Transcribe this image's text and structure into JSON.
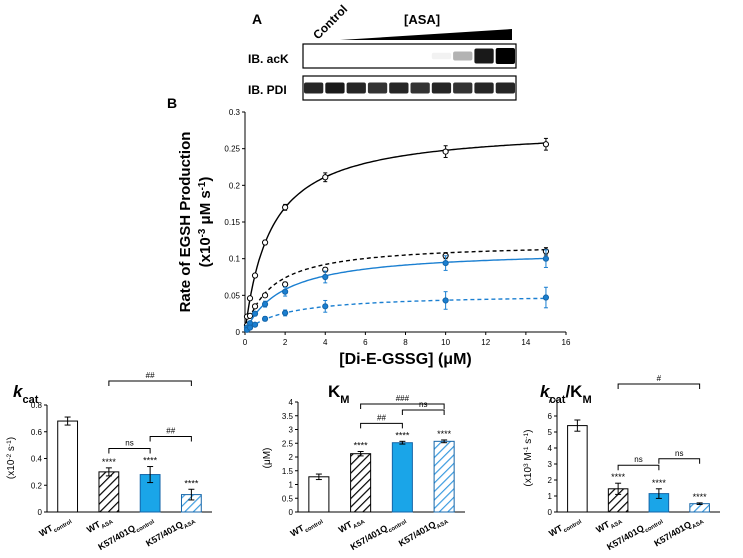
{
  "figure": {
    "panel_a": {
      "label": "A",
      "lane_label": "Control",
      "treatment_label": "[ASA]",
      "blots": [
        {
          "label": "IB. acK",
          "intensities": [
            0.0,
            0.0,
            0.0,
            0.0,
            0.0,
            0.0,
            0.05,
            0.3,
            0.9,
            1.0
          ]
        },
        {
          "label": "IB. PDI",
          "intensities": [
            0.85,
            0.9,
            0.85,
            0.8,
            0.85,
            0.8,
            0.85,
            0.8,
            0.85,
            0.85
          ]
        }
      ]
    },
    "panel_b_label": "B",
    "legend_note": "WT control (black solid), WT ASA (black dashed), K57/401Q control (blue solid), K57/401Q ASA (blue dashed)"
  },
  "chart_data": [
    {
      "id": "kinetics",
      "type": "scatter",
      "title": "",
      "xlabel": "[Di-E-GSSG] (μM)",
      "ylabel_line1": "Rate of EGSH Production",
      "ylabel_line2": "(x10-3 μM s-1)",
      "xlim": [
        0,
        16
      ],
      "ylim": [
        0,
        0.3
      ],
      "xticks": [
        0,
        2,
        4,
        6,
        8,
        10,
        12,
        14,
        16
      ],
      "yticks": [
        0,
        0.05,
        0.1,
        0.15,
        0.2,
        0.25,
        0.3
      ],
      "x": [
        0.1,
        0.25,
        0.5,
        1,
        2,
        4,
        10,
        15
      ],
      "series": [
        {
          "name": "WT control",
          "color": "#000000",
          "dashed": false,
          "marker_fill": "#ffffff",
          "vmax": 0.28,
          "km": 1.3,
          "values": [
            0.021,
            0.046,
            0.077,
            0.122,
            0.17,
            0.211,
            0.246,
            0.256
          ],
          "errors": [
            0.001,
            0.002,
            0.002,
            0.003,
            0.004,
            0.006,
            0.008,
            0.008
          ]
        },
        {
          "name": "WT ASA",
          "color": "#000000",
          "dashed": true,
          "marker_fill": "#ffffff",
          "vmax": 0.122,
          "km": 1.3,
          "values": [
            0.009,
            0.022,
            0.035,
            0.05,
            0.065,
            0.085,
            0.104,
            0.11
          ],
          "errors": [
            0.001,
            0.001,
            0.002,
            0.002,
            0.003,
            0.003,
            0.004,
            0.005
          ]
        },
        {
          "name": "K57/401Q control",
          "color": "#1a7fd1",
          "dashed": false,
          "marker_fill": "#1a7fd1",
          "vmax": 0.113,
          "km": 1.9,
          "values": [
            0.006,
            0.012,
            0.025,
            0.038,
            0.055,
            0.075,
            0.094,
            0.1
          ],
          "errors": [
            0.001,
            0.002,
            0.003,
            0.004,
            0.006,
            0.008,
            0.01,
            0.012
          ]
        },
        {
          "name": "K57/401Q ASA",
          "color": "#1a7fd1",
          "dashed": true,
          "marker_fill": "#1a7fd1",
          "vmax": 0.052,
          "km": 2.0,
          "values": [
            0.003,
            0.006,
            0.01,
            0.018,
            0.026,
            0.035,
            0.043,
            0.047
          ],
          "errors": [
            0.001,
            0.001,
            0.002,
            0.003,
            0.004,
            0.008,
            0.012,
            0.014
          ]
        }
      ]
    },
    {
      "id": "kcat",
      "type": "bar",
      "title": "kcat",
      "title_main": "k",
      "title_sub": "cat",
      "ylabel": "(x10-2 s-1)",
      "ylim": [
        0,
        0.8
      ],
      "yticks": [
        0,
        0.2,
        0.4,
        0.6,
        0.8
      ],
      "categories": [
        "WTcontrol",
        "WTASA",
        "K57/401Qcontrol",
        "K57/401QASA"
      ],
      "category_main": [
        "WT",
        "WT",
        "K57/401Q",
        "K57/401Q"
      ],
      "category_sub": [
        "control",
        "ASA",
        "control",
        "ASA"
      ],
      "values": [
        0.68,
        0.3,
        0.28,
        0.13
      ],
      "errors": [
        0.03,
        0.03,
        0.06,
        0.04
      ],
      "stars": [
        "",
        "****",
        "****",
        "****"
      ],
      "comparisons": [
        {
          "from": 1,
          "to": 2,
          "label": "ns"
        },
        {
          "from": 2,
          "to": 3,
          "label": "##"
        },
        {
          "from": 1,
          "to": 3,
          "label": "##"
        }
      ]
    },
    {
      "id": "km",
      "type": "bar",
      "title": "KM",
      "title_main": "K",
      "title_sub": "M",
      "ylabel": "(μM)",
      "ylim": [
        0,
        4
      ],
      "yticks": [
        0,
        0.5,
        1,
        1.5,
        2,
        2.5,
        3,
        3.5,
        4
      ],
      "categories": [
        "WTcontrol",
        "WTASA",
        "K57/401Qcontrol",
        "K57/401QASA"
      ],
      "category_main": [
        "WT",
        "WT",
        "K57/401Q",
        "K57/401Q"
      ],
      "category_sub": [
        "control",
        "ASA",
        "control",
        "ASA"
      ],
      "values": [
        1.28,
        2.12,
        2.52,
        2.57
      ],
      "errors": [
        0.1,
        0.08,
        0.05,
        0.05
      ],
      "stars": [
        "",
        "****",
        "****",
        "****"
      ],
      "comparisons": [
        {
          "from": 1,
          "to": 2,
          "label": "##"
        },
        {
          "from": 2,
          "to": 3,
          "label": "ns"
        },
        {
          "from": 1,
          "to": 3,
          "label": "###"
        }
      ]
    },
    {
      "id": "kcatkm",
      "type": "bar",
      "title": "kcat/KM",
      "title_main": "k",
      "title_sub": "cat",
      "title_rest": "/K",
      "title_sub2": "M",
      "ylabel": "(x103 M-1 s-1)",
      "ylim": [
        0,
        7
      ],
      "yticks": [
        0,
        1,
        2,
        3,
        4,
        5,
        6,
        7
      ],
      "categories": [
        "WTcontrol",
        "WTASA",
        "K57/401Qcontrol",
        "K57/401QASA"
      ],
      "category_main": [
        "WT",
        "WT",
        "K57/401Q",
        "K57/401Q"
      ],
      "category_sub": [
        "control",
        "ASA",
        "control",
        "ASA"
      ],
      "values": [
        5.4,
        1.45,
        1.15,
        0.52
      ],
      "errors": [
        0.35,
        0.35,
        0.3,
        0.05
      ],
      "stars": [
        "",
        "****",
        "****",
        "****"
      ],
      "comparisons": [
        {
          "from": 1,
          "to": 2,
          "label": "ns"
        },
        {
          "from": 2,
          "to": 3,
          "label": "ns"
        },
        {
          "from": 1,
          "to": 3,
          "label": "#"
        }
      ]
    }
  ]
}
